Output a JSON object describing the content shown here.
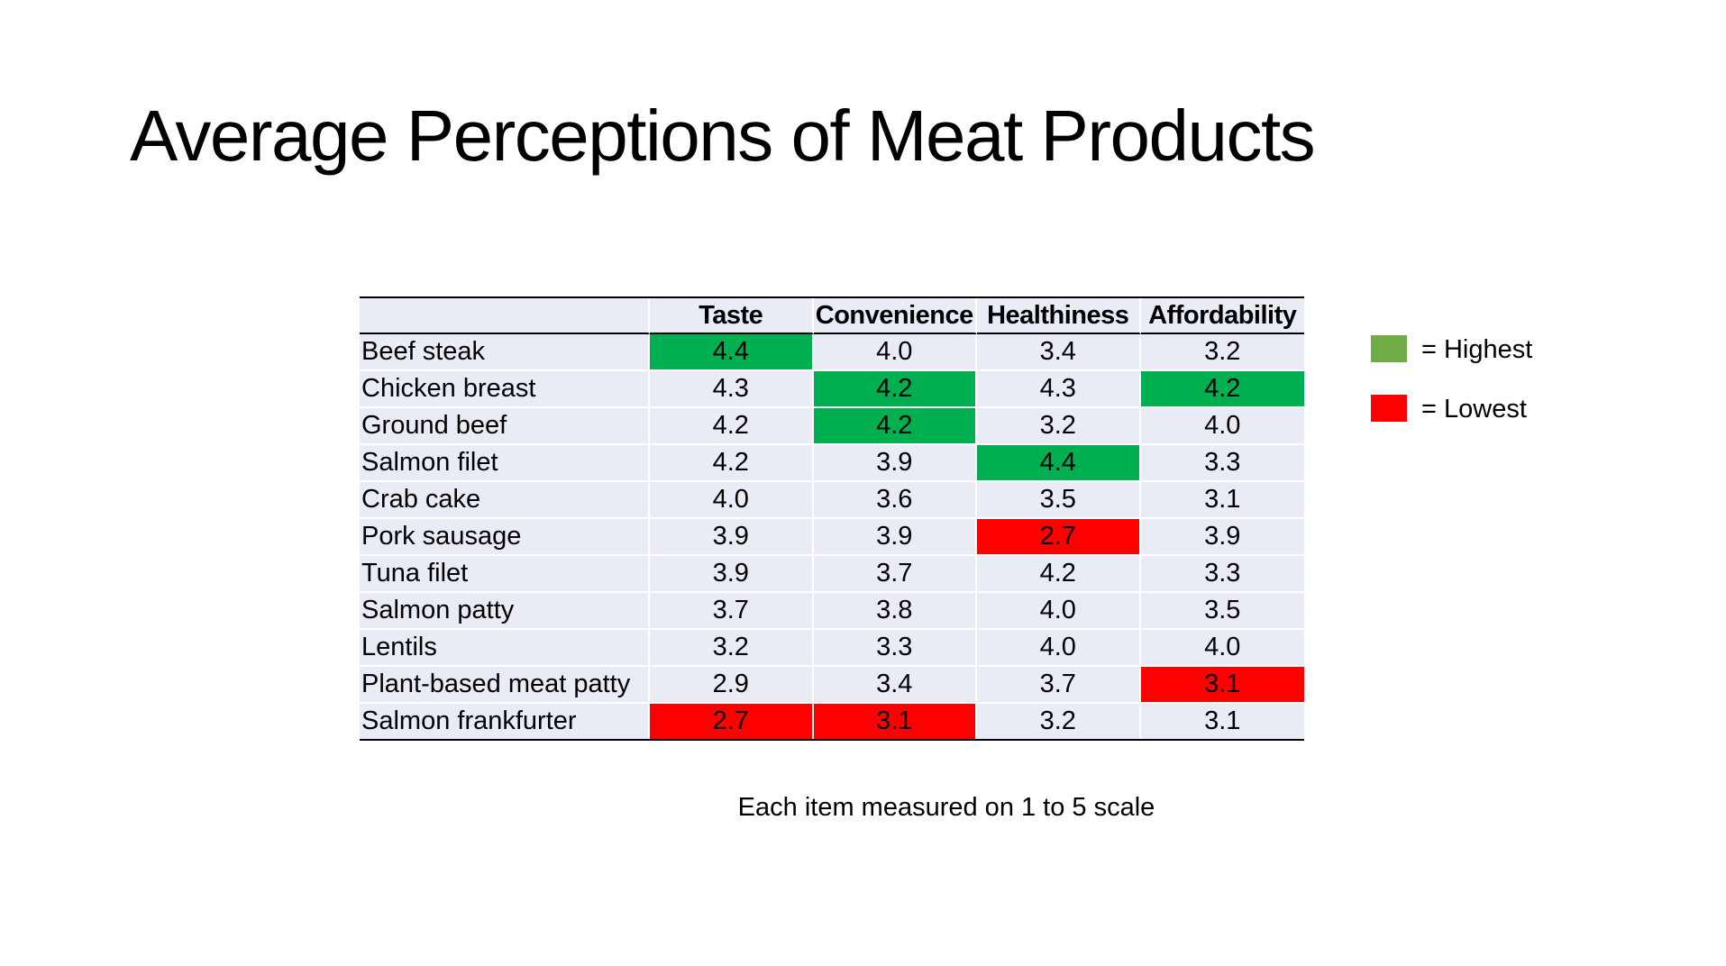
{
  "title": "Average Perceptions of Meat Products",
  "chart_data": {
    "type": "table",
    "columns": [
      "Taste",
      "Convenience",
      "Healthiness",
      "Affordability"
    ],
    "rows": [
      {
        "label": "Beef steak",
        "values": [
          "4.4",
          "4.0",
          "3.4",
          "3.2"
        ],
        "flags": [
          "high",
          "",
          "",
          ""
        ]
      },
      {
        "label": "Chicken breast",
        "values": [
          "4.3",
          "4.2",
          "4.3",
          "4.2"
        ],
        "flags": [
          "",
          "high",
          "",
          "high"
        ]
      },
      {
        "label": "Ground beef",
        "values": [
          "4.2",
          "4.2",
          "3.2",
          "4.0"
        ],
        "flags": [
          "",
          "high",
          "",
          ""
        ]
      },
      {
        "label": "Salmon filet",
        "values": [
          "4.2",
          "3.9",
          "4.4",
          "3.3"
        ],
        "flags": [
          "",
          "",
          "high",
          ""
        ]
      },
      {
        "label": "Crab cake",
        "values": [
          "4.0",
          "3.6",
          "3.5",
          "3.1"
        ],
        "flags": [
          "",
          "",
          "",
          ""
        ]
      },
      {
        "label": "Pork sausage",
        "values": [
          "3.9",
          "3.9",
          "2.7",
          "3.9"
        ],
        "flags": [
          "",
          "",
          "low",
          ""
        ]
      },
      {
        "label": "Tuna filet",
        "values": [
          "3.9",
          "3.7",
          "4.2",
          "3.3"
        ],
        "flags": [
          "",
          "",
          "",
          ""
        ]
      },
      {
        "label": "Salmon patty",
        "values": [
          "3.7",
          "3.8",
          "4.0",
          "3.5"
        ],
        "flags": [
          "",
          "",
          "",
          ""
        ]
      },
      {
        "label": "Lentils",
        "values": [
          "3.2",
          "3.3",
          "4.0",
          "4.0"
        ],
        "flags": [
          "",
          "",
          "",
          ""
        ]
      },
      {
        "label": "Plant-based meat patty",
        "values": [
          "2.9",
          "3.4",
          "3.7",
          "3.1"
        ],
        "flags": [
          "",
          "",
          "",
          "low"
        ]
      },
      {
        "label": "Salmon frankfurter",
        "values": [
          "2.7",
          "3.1",
          "3.2",
          "3.1"
        ],
        "flags": [
          "low",
          "low",
          "",
          ""
        ]
      }
    ]
  },
  "legend": [
    {
      "label": "= Highest",
      "color": "#70ad47"
    },
    {
      "label": "= Lowest",
      "color": "#ff0000"
    }
  ],
  "colors": {
    "highest_cell": "#00b050",
    "lowest_cell": "#ff0000",
    "cell_background": "#e9ebf5"
  },
  "footnote": "Each item measured on 1 to 5 scale"
}
